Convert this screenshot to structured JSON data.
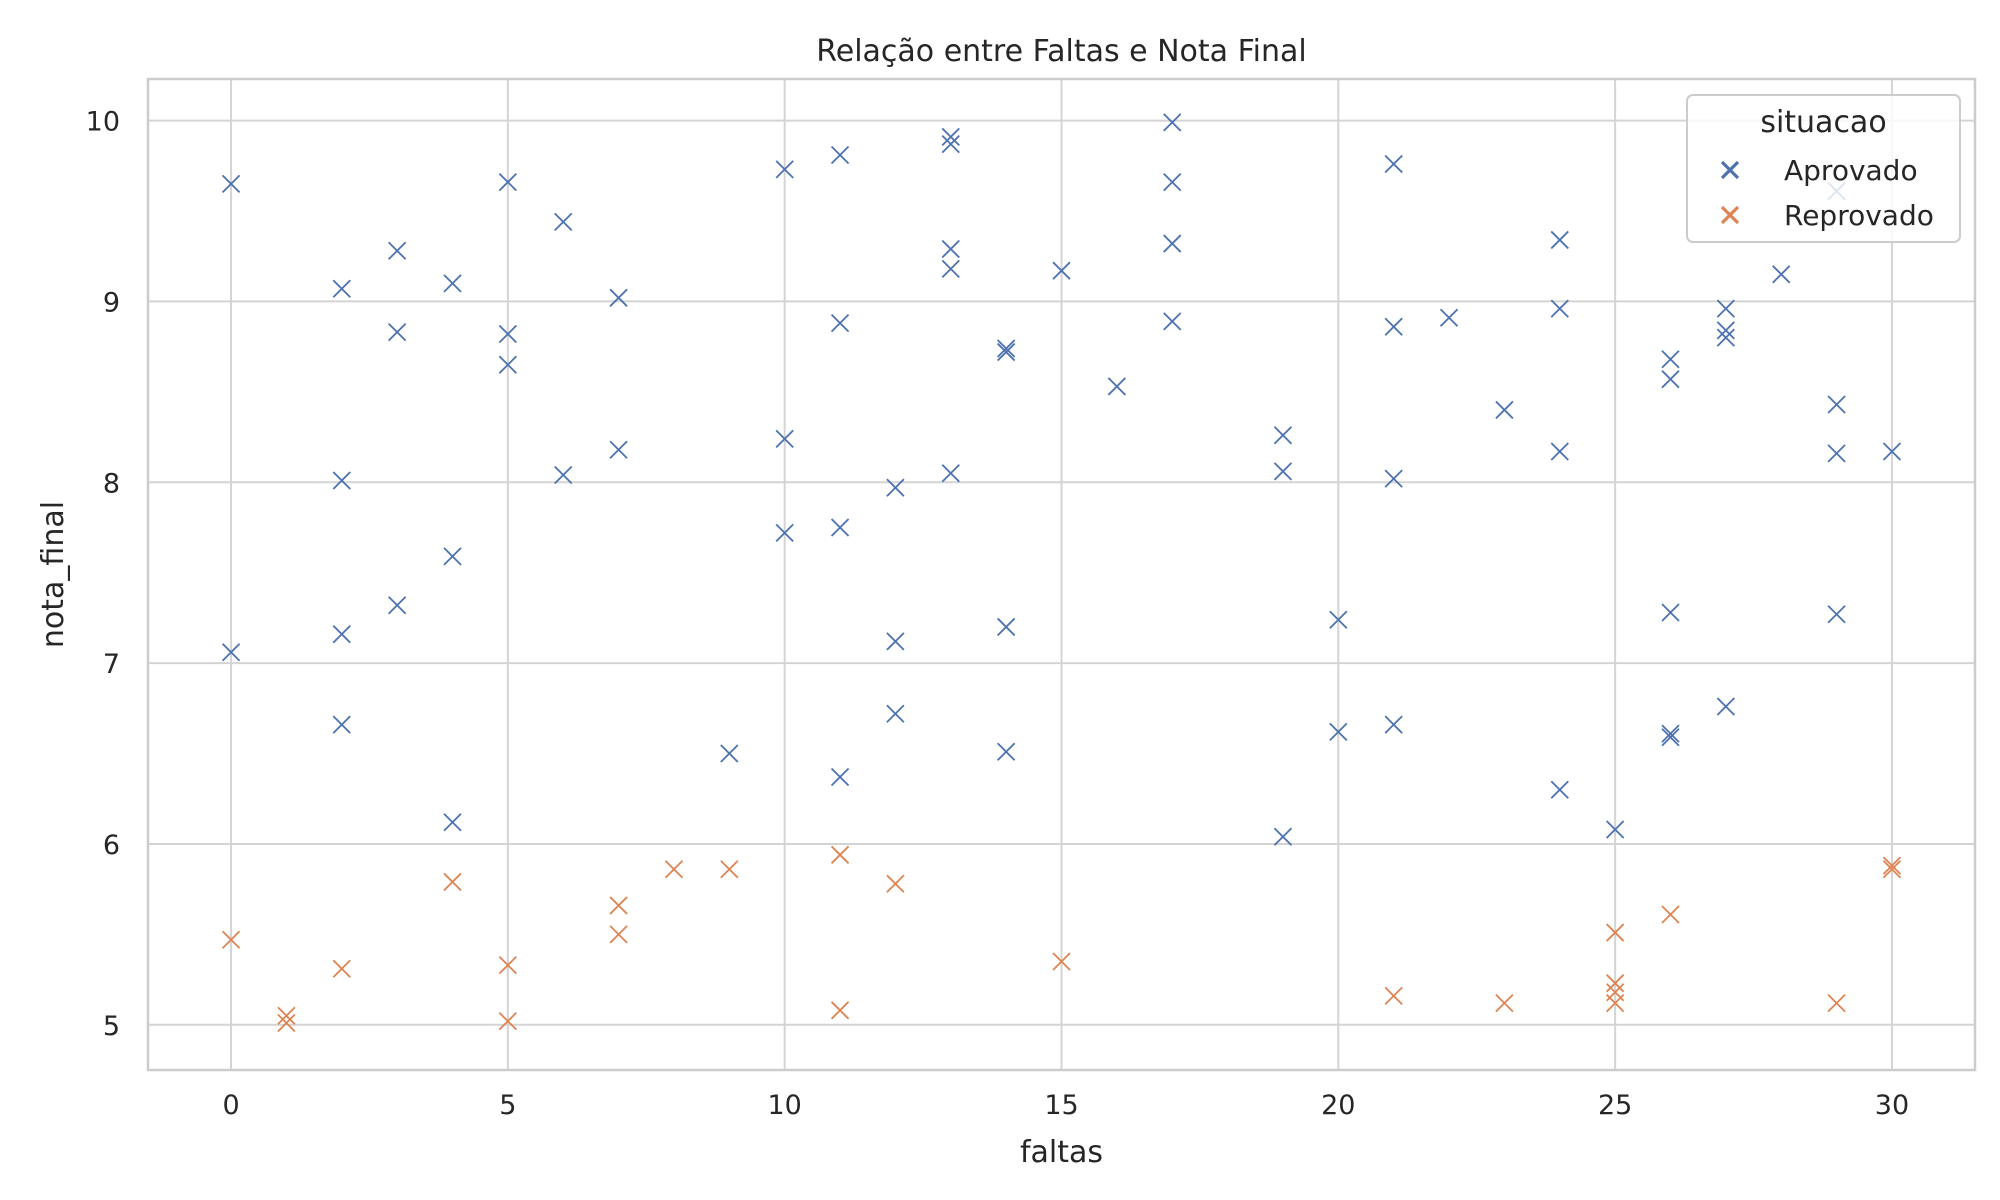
{
  "chart_data": {
    "type": "scatter",
    "title": "Relação entre Faltas e Nota Final",
    "xlabel": "faltas",
    "ylabel": "nota_final",
    "xlim": [
      -1.5,
      31.5
    ],
    "ylim": [
      4.75,
      10.23
    ],
    "x_ticks": [
      0,
      5,
      10,
      15,
      20,
      25,
      30
    ],
    "y_ticks": [
      5,
      6,
      7,
      8,
      9,
      10
    ],
    "grid": true,
    "marker": "x",
    "legend": {
      "title": "situacao",
      "position": "top-right"
    },
    "series": [
      {
        "name": "Aprovado",
        "color": "#4c72b0",
        "points": [
          [
            0,
            9.65
          ],
          [
            0,
            7.06
          ],
          [
            2,
            9.07
          ],
          [
            2,
            8.01
          ],
          [
            2,
            7.16
          ],
          [
            2,
            6.66
          ],
          [
            3,
            9.28
          ],
          [
            3,
            8.83
          ],
          [
            3,
            7.32
          ],
          [
            4,
            9.1
          ],
          [
            4,
            7.59
          ],
          [
            4,
            6.12
          ],
          [
            5,
            9.66
          ],
          [
            5,
            8.82
          ],
          [
            5,
            8.65
          ],
          [
            6,
            9.44
          ],
          [
            6,
            8.04
          ],
          [
            7,
            9.02
          ],
          [
            7,
            8.18
          ],
          [
            9,
            6.5
          ],
          [
            10,
            9.73
          ],
          [
            10,
            8.24
          ],
          [
            10,
            7.72
          ],
          [
            11,
            9.81
          ],
          [
            11,
            8.88
          ],
          [
            11,
            7.75
          ],
          [
            11,
            6.37
          ],
          [
            12,
            7.97
          ],
          [
            12,
            7.12
          ],
          [
            12,
            6.72
          ],
          [
            13,
            9.91
          ],
          [
            13,
            9.87
          ],
          [
            13,
            9.29
          ],
          [
            13,
            9.18
          ],
          [
            13,
            8.05
          ],
          [
            14,
            8.74
          ],
          [
            14,
            8.72
          ],
          [
            14,
            7.2
          ],
          [
            14,
            6.51
          ],
          [
            15,
            9.17
          ],
          [
            16,
            8.53
          ],
          [
            17,
            9.99
          ],
          [
            17,
            9.66
          ],
          [
            17,
            9.32
          ],
          [
            17,
            8.89
          ],
          [
            19,
            8.26
          ],
          [
            19,
            8.06
          ],
          [
            19,
            6.04
          ],
          [
            20,
            7.24
          ],
          [
            20,
            6.62
          ],
          [
            21,
            9.76
          ],
          [
            21,
            8.86
          ],
          [
            21,
            8.02
          ],
          [
            21,
            6.66
          ],
          [
            22,
            8.91
          ],
          [
            23,
            8.4
          ],
          [
            24,
            9.34
          ],
          [
            24,
            8.96
          ],
          [
            24,
            8.17
          ],
          [
            24,
            6.3
          ],
          [
            25,
            6.08
          ],
          [
            26,
            8.68
          ],
          [
            26,
            8.57
          ],
          [
            26,
            7.28
          ],
          [
            26,
            6.61
          ],
          [
            26,
            6.59
          ],
          [
            27,
            8.96
          ],
          [
            27,
            8.84
          ],
          [
            27,
            8.8
          ],
          [
            27,
            6.76
          ],
          [
            28,
            9.15
          ],
          [
            29,
            9.61
          ],
          [
            29,
            8.43
          ],
          [
            29,
            8.16
          ],
          [
            29,
            7.27
          ],
          [
            30,
            8.17
          ]
        ]
      },
      {
        "name": "Reprovado",
        "color": "#dd8452",
        "points": [
          [
            0,
            5.47
          ],
          [
            1,
            5.05
          ],
          [
            1,
            5.01
          ],
          [
            2,
            5.31
          ],
          [
            4,
            5.79
          ],
          [
            5,
            5.33
          ],
          [
            5,
            5.02
          ],
          [
            7,
            5.66
          ],
          [
            7,
            5.5
          ],
          [
            8,
            5.86
          ],
          [
            9,
            5.86
          ],
          [
            11,
            5.94
          ],
          [
            11,
            5.08
          ],
          [
            12,
            5.78
          ],
          [
            15,
            5.35
          ],
          [
            21,
            5.16
          ],
          [
            23,
            5.12
          ],
          [
            25,
            5.51
          ],
          [
            25,
            5.23
          ],
          [
            25,
            5.18
          ],
          [
            25,
            5.12
          ],
          [
            26,
            5.61
          ],
          [
            29,
            5.12
          ],
          [
            30,
            5.88
          ],
          [
            30,
            5.86
          ]
        ]
      }
    ]
  }
}
